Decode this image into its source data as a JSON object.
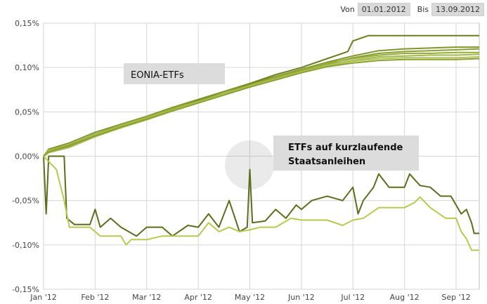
{
  "date_range": {
    "from_label": "Von",
    "from_value": "01.01.2012",
    "to_label": "Bis",
    "to_value": "13.09.2012"
  },
  "colors": {
    "eonia_dark": "#6b7f1a",
    "eonia_mid": "#7f9628",
    "eonia_light": "#a3b84a",
    "anleihen_dark": "#5a6e1c",
    "anleihen_light": "#b4cc4c",
    "grid": "#d6d6d6",
    "label_box": "#dcdcdc"
  },
  "chart_data": {
    "type": "line",
    "title": "",
    "xlabel": "",
    "ylabel": "",
    "x_ticks": [
      "Jan '12",
      "Feb '12",
      "Mar '12",
      "Apr '12",
      "May '12",
      "Jun '12",
      "Jul '12",
      "Aug '12",
      "Sep '12"
    ],
    "y_ticks": [
      "0,15%",
      "0,10%",
      "0,05%",
      "0,00%",
      "-0,05%",
      "-0,10%",
      "-0,15%"
    ],
    "ylim": [
      -0.15,
      0.15
    ],
    "x_unit": "month index (0 = 01.01.2012)",
    "xlim": [
      0,
      8.45
    ],
    "grid": true,
    "annotations": [
      "EONIA-ETFs",
      "ETFs auf kurzlaufende Staatsanleihen"
    ],
    "series": [
      {
        "group": "EONIA-ETFs",
        "color": "#6b7f1a",
        "points": [
          [
            0,
            0.0
          ],
          [
            0.1,
            0.006
          ],
          [
            0.5,
            0.012
          ],
          [
            1,
            0.024
          ],
          [
            1.5,
            0.034
          ],
          [
            2,
            0.043
          ],
          [
            2.5,
            0.053
          ],
          [
            3,
            0.063
          ],
          [
            3.5,
            0.073
          ],
          [
            4,
            0.082
          ],
          [
            4.5,
            0.092
          ],
          [
            5,
            0.1
          ],
          [
            5.5,
            0.11
          ],
          [
            5.9,
            0.118
          ],
          [
            6,
            0.13
          ],
          [
            6.3,
            0.136
          ],
          [
            8.45,
            0.136
          ]
        ]
      },
      {
        "group": "EONIA-ETFs",
        "color": "#7f9628",
        "points": [
          [
            0,
            0.0
          ],
          [
            0.1,
            0.008
          ],
          [
            0.5,
            0.015
          ],
          [
            1,
            0.027
          ],
          [
            1.5,
            0.036
          ],
          [
            2,
            0.045
          ],
          [
            2.5,
            0.055
          ],
          [
            3,
            0.064
          ],
          [
            3.5,
            0.073
          ],
          [
            4,
            0.081
          ],
          [
            4.5,
            0.09
          ],
          [
            5,
            0.098
          ],
          [
            5.5,
            0.106
          ],
          [
            6,
            0.113
          ],
          [
            6.5,
            0.119
          ],
          [
            7,
            0.121
          ],
          [
            7.5,
            0.122
          ],
          [
            8,
            0.123
          ],
          [
            8.45,
            0.123
          ]
        ]
      },
      {
        "group": "EONIA-ETFs",
        "color": "#8aa030",
        "points": [
          [
            0,
            0.0
          ],
          [
            0.1,
            0.005
          ],
          [
            0.5,
            0.011
          ],
          [
            1,
            0.023
          ],
          [
            1.5,
            0.033
          ],
          [
            2,
            0.042
          ],
          [
            2.5,
            0.052
          ],
          [
            3,
            0.061
          ],
          [
            3.5,
            0.07
          ],
          [
            4,
            0.079
          ],
          [
            4.5,
            0.088
          ],
          [
            5,
            0.096
          ],
          [
            5.5,
            0.104
          ],
          [
            6,
            0.111
          ],
          [
            6.5,
            0.116
          ],
          [
            7,
            0.118
          ],
          [
            7.5,
            0.119
          ],
          [
            8,
            0.12
          ],
          [
            8.45,
            0.121
          ]
        ]
      },
      {
        "group": "EONIA-ETFs",
        "color": "#96ad3a",
        "points": [
          [
            0,
            0.0
          ],
          [
            0.1,
            0.007
          ],
          [
            0.5,
            0.013
          ],
          [
            1,
            0.025
          ],
          [
            1.5,
            0.035
          ],
          [
            2,
            0.044
          ],
          [
            2.5,
            0.054
          ],
          [
            3,
            0.062
          ],
          [
            3.5,
            0.071
          ],
          [
            4,
            0.08
          ],
          [
            4.5,
            0.089
          ],
          [
            5,
            0.097
          ],
          [
            5.5,
            0.105
          ],
          [
            6,
            0.11
          ],
          [
            6.5,
            0.114
          ],
          [
            7,
            0.116
          ],
          [
            7.5,
            0.116
          ],
          [
            8,
            0.117
          ],
          [
            8.45,
            0.117
          ]
        ]
      },
      {
        "group": "EONIA-ETFs",
        "color": "#a3b84a",
        "points": [
          [
            0,
            0.0
          ],
          [
            0.1,
            0.004
          ],
          [
            0.5,
            0.01
          ],
          [
            1,
            0.022
          ],
          [
            1.5,
            0.032
          ],
          [
            2,
            0.041
          ],
          [
            2.5,
            0.051
          ],
          [
            3,
            0.06
          ],
          [
            3.5,
            0.069
          ],
          [
            4,
            0.078
          ],
          [
            4.5,
            0.087
          ],
          [
            5,
            0.095
          ],
          [
            5.5,
            0.103
          ],
          [
            6,
            0.108
          ],
          [
            6.5,
            0.112
          ],
          [
            7,
            0.113
          ],
          [
            7.5,
            0.114
          ],
          [
            8,
            0.114
          ],
          [
            8.45,
            0.115
          ]
        ]
      },
      {
        "group": "EONIA-ETFs",
        "color": "#b0c45a",
        "points": [
          [
            0,
            0.0
          ],
          [
            0.1,
            0.006
          ],
          [
            0.5,
            0.012
          ],
          [
            1,
            0.024
          ],
          [
            1.5,
            0.034
          ],
          [
            2,
            0.043
          ],
          [
            2.5,
            0.052
          ],
          [
            3,
            0.061
          ],
          [
            3.5,
            0.07
          ],
          [
            4,
            0.079
          ],
          [
            4.5,
            0.087
          ],
          [
            5,
            0.095
          ],
          [
            5.5,
            0.102
          ],
          [
            6,
            0.107
          ],
          [
            6.5,
            0.11
          ],
          [
            7,
            0.111
          ],
          [
            7.5,
            0.111
          ],
          [
            8,
            0.111
          ],
          [
            8.45,
            0.112
          ]
        ]
      },
      {
        "group": "EONIA-ETFs",
        "color": "#8aa030",
        "points": [
          [
            0,
            0.0
          ],
          [
            0.1,
            0.005
          ],
          [
            0.5,
            0.012
          ],
          [
            1,
            0.023
          ],
          [
            1.5,
            0.033
          ],
          [
            2,
            0.042
          ],
          [
            2.5,
            0.051
          ],
          [
            3,
            0.06
          ],
          [
            3.5,
            0.069
          ],
          [
            4,
            0.078
          ],
          [
            4.5,
            0.086
          ],
          [
            5,
            0.094
          ],
          [
            5.5,
            0.101
          ],
          [
            6,
            0.105
          ],
          [
            6.5,
            0.108
          ],
          [
            7,
            0.109
          ],
          [
            7.5,
            0.109
          ],
          [
            8,
            0.109
          ],
          [
            8.45,
            0.11
          ]
        ]
      },
      {
        "group": "ETFs auf kurzlaufende Staatsanleihen",
        "color": "#5a6e1c",
        "points": [
          [
            0,
            0.0
          ],
          [
            0.05,
            -0.065
          ],
          [
            0.1,
            0.0
          ],
          [
            0.4,
            0.0
          ],
          [
            0.45,
            -0.07
          ],
          [
            0.6,
            -0.077
          ],
          [
            0.9,
            -0.077
          ],
          [
            1,
            -0.06
          ],
          [
            1.1,
            -0.08
          ],
          [
            1.3,
            -0.07
          ],
          [
            1.5,
            -0.08
          ],
          [
            1.8,
            -0.09
          ],
          [
            2,
            -0.08
          ],
          [
            2.3,
            -0.08
          ],
          [
            2.5,
            -0.09
          ],
          [
            2.8,
            -0.078
          ],
          [
            3,
            -0.08
          ],
          [
            3.2,
            -0.065
          ],
          [
            3.4,
            -0.08
          ],
          [
            3.6,
            -0.05
          ],
          [
            3.8,
            -0.085
          ],
          [
            3.95,
            -0.08
          ],
          [
            4,
            -0.015
          ],
          [
            4.05,
            -0.075
          ],
          [
            4.3,
            -0.073
          ],
          [
            4.5,
            -0.06
          ],
          [
            4.7,
            -0.07
          ],
          [
            4.9,
            -0.055
          ],
          [
            5,
            -0.06
          ],
          [
            5.2,
            -0.05
          ],
          [
            5.5,
            -0.045
          ],
          [
            5.8,
            -0.05
          ],
          [
            6,
            -0.035
          ],
          [
            6.1,
            -0.065
          ],
          [
            6.2,
            -0.05
          ],
          [
            6.4,
            -0.035
          ],
          [
            6.5,
            -0.02
          ],
          [
            6.7,
            -0.035
          ],
          [
            7,
            -0.035
          ],
          [
            7.1,
            -0.02
          ],
          [
            7.3,
            -0.033
          ],
          [
            7.5,
            -0.035
          ],
          [
            7.7,
            -0.045
          ],
          [
            7.9,
            -0.045
          ],
          [
            8,
            -0.055
          ],
          [
            8.1,
            -0.065
          ],
          [
            8.2,
            -0.06
          ],
          [
            8.3,
            -0.075
          ],
          [
            8.35,
            -0.087
          ],
          [
            8.45,
            -0.087
          ]
        ]
      },
      {
        "group": "ETFs auf kurzlaufende Staatsanleihen",
        "color": "#b4cc4c",
        "points": [
          [
            0,
            0.0
          ],
          [
            0.25,
            -0.015
          ],
          [
            0.4,
            -0.05
          ],
          [
            0.5,
            -0.08
          ],
          [
            0.9,
            -0.08
          ],
          [
            1.1,
            -0.09
          ],
          [
            1.5,
            -0.09
          ],
          [
            1.6,
            -0.1
          ],
          [
            1.7,
            -0.094
          ],
          [
            2,
            -0.094
          ],
          [
            2.3,
            -0.09
          ],
          [
            2.6,
            -0.09
          ],
          [
            3,
            -0.09
          ],
          [
            3.2,
            -0.075
          ],
          [
            3.4,
            -0.085
          ],
          [
            3.6,
            -0.08
          ],
          [
            3.8,
            -0.085
          ],
          [
            4,
            -0.083
          ],
          [
            4.2,
            -0.08
          ],
          [
            4.5,
            -0.08
          ],
          [
            4.8,
            -0.07
          ],
          [
            5,
            -0.072
          ],
          [
            5.5,
            -0.072
          ],
          [
            5.8,
            -0.078
          ],
          [
            6,
            -0.072
          ],
          [
            6.2,
            -0.07
          ],
          [
            6.5,
            -0.058
          ],
          [
            6.8,
            -0.058
          ],
          [
            7,
            -0.058
          ],
          [
            7.2,
            -0.052
          ],
          [
            7.3,
            -0.046
          ],
          [
            7.5,
            -0.058
          ],
          [
            7.8,
            -0.07
          ],
          [
            8,
            -0.07
          ],
          [
            8.1,
            -0.085
          ],
          [
            8.2,
            -0.093
          ],
          [
            8.3,
            -0.106
          ],
          [
            8.45,
            -0.106
          ]
        ]
      }
    ]
  }
}
